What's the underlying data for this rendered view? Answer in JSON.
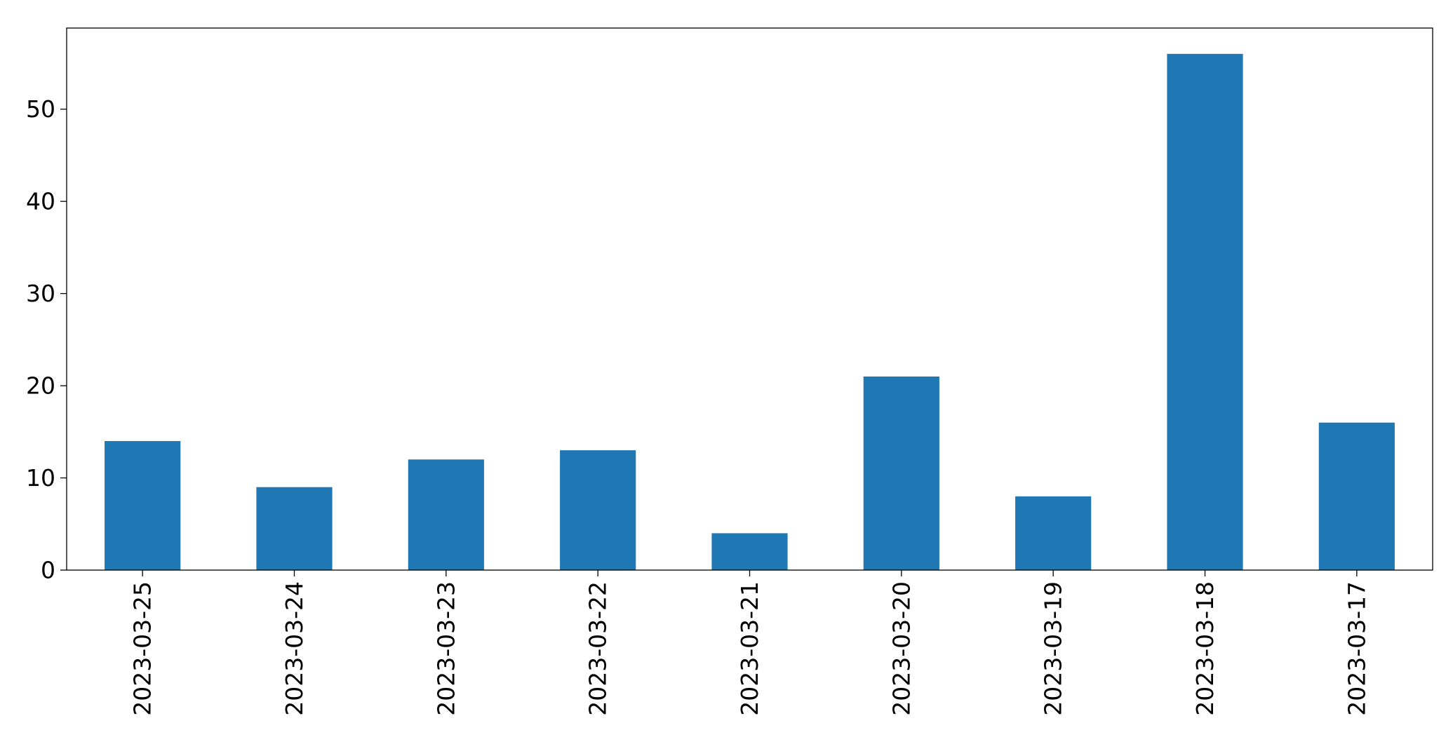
{
  "chart_data": {
    "type": "bar",
    "categories": [
      "2023-03-25",
      "2023-03-24",
      "2023-03-23",
      "2023-03-22",
      "2023-03-21",
      "2023-03-20",
      "2023-03-19",
      "2023-03-18",
      "2023-03-17"
    ],
    "values": [
      14,
      9,
      12,
      13,
      4,
      21,
      8,
      56,
      16
    ],
    "yticks": [
      "0",
      "10",
      "20",
      "30",
      "40",
      "50"
    ],
    "ylim": [
      0,
      58.8
    ],
    "grid": false,
    "bar_color": "#1f77b4",
    "x_tick_rotation": "vertical"
  }
}
